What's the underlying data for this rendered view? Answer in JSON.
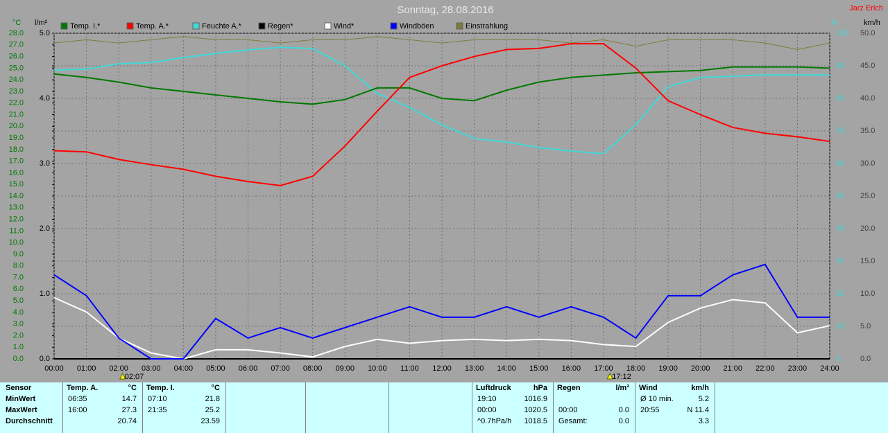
{
  "chart_data": {
    "type": "line",
    "title": "Sonntag, 28.08.2016",
    "author": "Jarz Erich",
    "units": {
      "y": "°C",
      "y4": "l/m²",
      "y2": "%",
      "y3": "km/h"
    },
    "x": [
      0,
      1,
      2,
      3,
      4,
      5,
      6,
      7,
      8,
      9,
      10,
      11,
      12,
      13,
      14,
      15,
      16,
      17,
      18,
      19,
      20,
      21,
      22,
      23,
      24
    ],
    "xlim": [
      0,
      24
    ],
    "xticks": [
      {
        "value": 0,
        "label": "00:00"
      },
      {
        "value": 1,
        "label": "01:00"
      },
      {
        "value": 2,
        "label": "02:00"
      },
      {
        "value": 3,
        "label": "03:00"
      },
      {
        "value": 4,
        "label": "04:00"
      },
      {
        "value": 5,
        "label": "05:00"
      },
      {
        "value": 6,
        "label": "06:00"
      },
      {
        "value": 7,
        "label": "07:00"
      },
      {
        "value": 8,
        "label": "08:00"
      },
      {
        "value": 9,
        "label": "09:00"
      },
      {
        "value": 10,
        "label": "10:00"
      },
      {
        "value": 11,
        "label": "11:00"
      },
      {
        "value": 12,
        "label": "12:00"
      },
      {
        "value": 13,
        "label": "13:00"
      },
      {
        "value": 14,
        "label": "14:00"
      },
      {
        "value": 15,
        "label": "15:00"
      },
      {
        "value": 16,
        "label": "16:00"
      },
      {
        "value": 17,
        "label": "17:00"
      },
      {
        "value": 18,
        "label": "18:00"
      },
      {
        "value": 19,
        "label": "19:00"
      },
      {
        "value": 20,
        "label": "20:00"
      },
      {
        "value": 21,
        "label": "21:00"
      },
      {
        "value": 22,
        "label": "22:00"
      },
      {
        "value": 23,
        "label": "23:00"
      },
      {
        "value": 24,
        "label": "24:00"
      }
    ],
    "ylim": [
      0,
      28
    ],
    "yticks": [
      {
        "value": 0,
        "label": "0.0"
      },
      {
        "value": 1,
        "label": "1.0"
      },
      {
        "value": 2,
        "label": "2.0"
      },
      {
        "value": 3,
        "label": "3.0"
      },
      {
        "value": 4,
        "label": "4.0"
      },
      {
        "value": 5,
        "label": "5.0"
      },
      {
        "value": 6,
        "label": "6.0"
      },
      {
        "value": 7,
        "label": "7.0"
      },
      {
        "value": 8,
        "label": "8.0"
      },
      {
        "value": 9,
        "label": "9.0"
      },
      {
        "value": 10,
        "label": "10.0"
      },
      {
        "value": 11,
        "label": "11.0"
      },
      {
        "value": 12,
        "label": "12.0"
      },
      {
        "value": 13,
        "label": "13.0"
      },
      {
        "value": 14,
        "label": "14.0"
      },
      {
        "value": 15,
        "label": "15.0"
      },
      {
        "value": 16,
        "label": "16.0"
      },
      {
        "value": 17,
        "label": "17.0"
      },
      {
        "value": 18,
        "label": "18.0"
      },
      {
        "value": 19,
        "label": "19.0"
      },
      {
        "value": 20,
        "label": "20.0"
      },
      {
        "value": 21,
        "label": "21.0"
      },
      {
        "value": 22,
        "label": "22.0"
      },
      {
        "value": 23,
        "label": "23.0"
      },
      {
        "value": 24,
        "label": "24.0"
      },
      {
        "value": 25,
        "label": "25.0"
      },
      {
        "value": 26,
        "label": "26.0"
      },
      {
        "value": 27,
        "label": "27.0"
      },
      {
        "value": 28,
        "label": "28.0"
      }
    ],
    "y4lim": [
      0,
      5
    ],
    "y4ticks": [
      {
        "value": 0,
        "label": "0.0"
      },
      {
        "value": 1,
        "label": "1.0"
      },
      {
        "value": 2,
        "label": "2.0"
      },
      {
        "value": 3,
        "label": "3.0"
      },
      {
        "value": 4,
        "label": "4.0"
      },
      {
        "value": 5,
        "label": "5.0"
      }
    ],
    "y2lim": [
      0,
      100
    ],
    "y2ticks": [
      0,
      10,
      20,
      30,
      40,
      50,
      60,
      70,
      80,
      90,
      100
    ],
    "y3lim": [
      0,
      50
    ],
    "y3ticks": [
      {
        "value": 0,
        "label": "0.0"
      },
      {
        "value": 5,
        "label": "5.0"
      },
      {
        "value": 10,
        "label": "10.0"
      },
      {
        "value": 15,
        "label": "15.0"
      },
      {
        "value": 20,
        "label": "20.0"
      },
      {
        "value": 25,
        "label": "25.0"
      },
      {
        "value": 30,
        "label": "30.0"
      },
      {
        "value": 35,
        "label": "35.0"
      },
      {
        "value": 40,
        "label": "40.0"
      },
      {
        "value": 45,
        "label": "45.0"
      },
      {
        "value": 50,
        "label": "50.0"
      }
    ],
    "grid": true,
    "series": [
      {
        "name": "Temp. I.*",
        "color": "#007800",
        "axis": "y",
        "values": [
          24.5,
          24.2,
          23.8,
          23.3,
          23.0,
          22.7,
          22.4,
          22.1,
          21.9,
          22.3,
          23.3,
          23.3,
          22.4,
          22.2,
          23.1,
          23.8,
          24.2,
          24.4,
          24.6,
          24.7,
          24.8,
          25.1,
          25.1,
          25.1,
          25.0
        ]
      },
      {
        "name": "Temp. A.*",
        "color": "#ff0000",
        "axis": "y",
        "values": [
          17.9,
          17.8,
          17.15,
          16.7,
          16.3,
          15.7,
          15.25,
          14.9,
          15.7,
          18.3,
          21.3,
          24.2,
          25.2,
          26.0,
          26.6,
          26.7,
          27.1,
          27.1,
          25.0,
          22.2,
          21.0,
          19.9,
          19.4,
          19.1,
          18.7
        ]
      },
      {
        "name": "Feuchte A.*",
        "color": "#40d8d8",
        "axis": "y2",
        "values": [
          88.7,
          89,
          90.6,
          91,
          92.5,
          93.8,
          94.9,
          95.7,
          95.3,
          90,
          81.5,
          77.2,
          71.9,
          67.7,
          66.6,
          64.9,
          63.8,
          63,
          71.9,
          83.6,
          86.4,
          86.8,
          87.2,
          87.2,
          87.2
        ]
      },
      {
        "name": "Regen*",
        "color": "#000000",
        "axis": "y4",
        "values": [
          0,
          0,
          0,
          0,
          0,
          0,
          0,
          0,
          0,
          0,
          0,
          0,
          0,
          0,
          0,
          0,
          0,
          0,
          0,
          0,
          0,
          0,
          0,
          0,
          0
        ]
      },
      {
        "name": "Wind*",
        "color": "#ffffff",
        "axis": "y3",
        "values": [
          9.4,
          7.2,
          3.2,
          0.9,
          0,
          1.4,
          1.4,
          0.9,
          0.3,
          1.9,
          3.0,
          2.4,
          2.8,
          3.0,
          2.8,
          3.0,
          2.8,
          2.2,
          1.9,
          5.6,
          7.8,
          9.1,
          8.6,
          4.0,
          5.1
        ]
      },
      {
        "name": "Windböen",
        "color": "#0000ff",
        "axis": "y3",
        "values": [
          12.9,
          9.7,
          3.2,
          0,
          0,
          6.2,
          3.2,
          4.8,
          3.2,
          4.8,
          6.4,
          8.0,
          6.4,
          6.4,
          8.0,
          6.4,
          8.0,
          6.4,
          3.2,
          9.7,
          9.7,
          12.9,
          14.5,
          6.4,
          6.4
        ]
      },
      {
        "name": "Einstrahlung",
        "color": "#7c7c3c",
        "axis": "y2",
        "values": [
          97,
          98,
          97,
          98,
          99,
          98,
          98,
          97,
          98,
          98,
          99,
          98,
          97,
          98,
          98,
          98,
          97,
          98,
          96,
          98,
          98,
          98,
          97,
          95,
          97
        ]
      }
    ],
    "annotations": [
      {
        "text": "02:07",
        "x": 2.12
      },
      {
        "text": "17:12",
        "x": 17.2
      }
    ]
  },
  "table": {
    "row_labels": [
      "Sensor",
      "MinWert",
      "MaxWert",
      "Durchschnitt"
    ],
    "blocks": [
      {
        "title": "Temp. A.",
        "unit": "°C",
        "rows": [
          {
            "time": "06:35",
            "value": "14.7"
          },
          {
            "time": "16:00",
            "value": "27.3"
          },
          {
            "value": "20.74"
          }
        ]
      },
      {
        "title": "Temp. I.",
        "unit": "°C",
        "rows": [
          {
            "time": "07:10",
            "value": "21.8"
          },
          {
            "time": "21:35",
            "value": "25.2"
          },
          {
            "value": "23.59"
          }
        ]
      },
      {
        "title": "Luftdruck",
        "unit": "hPa",
        "rows": [
          {
            "time": "19:10",
            "value": "1016.9"
          },
          {
            "time": "00:00",
            "value": "1020.5"
          },
          {
            "time": "^0.7hPa/h",
            "value": "1018.5"
          }
        ]
      },
      {
        "title": "Regen",
        "unit": "l/m²",
        "rows": [
          null,
          {
            "time": "00:00",
            "value": "0.0"
          },
          {
            "time": "Gesamt:",
            "value": "0.0"
          }
        ]
      },
      {
        "title": "Wind",
        "unit": "km/h",
        "rows": [
          {
            "time": "Ø 10 min.",
            "value": "5.2"
          },
          {
            "time": "20:55",
            "value": "N 11.4"
          },
          {
            "value": "3.3"
          }
        ]
      }
    ]
  }
}
